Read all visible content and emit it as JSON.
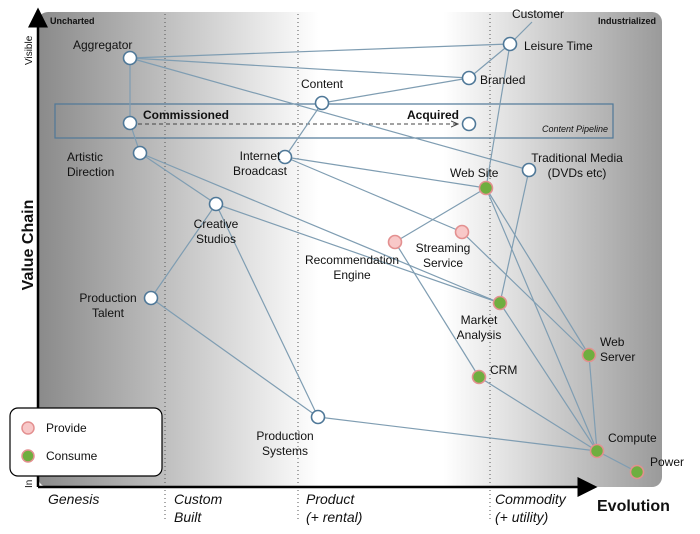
{
  "map": {
    "corner_labels": {
      "left": "Uncharted",
      "right": "Industrialized"
    },
    "y_axis": {
      "title": "Value Chain",
      "top": "Visible",
      "bottom": "In"
    },
    "x_axis": {
      "title": "Evolution"
    },
    "stages": [
      [
        "Genesis"
      ],
      [
        "Custom",
        "Built"
      ],
      [
        "Product",
        "(+ rental)"
      ],
      [
        "Commodity",
        "(+ utility)"
      ]
    ],
    "pipeline_label": "Content Pipeline",
    "legend": {
      "provide": "Provide",
      "consume": "Consume"
    },
    "nodes": [
      {
        "label": [
          "Customer"
        ]
      },
      {
        "label": [
          "Leisure Time"
        ]
      },
      {
        "label": [
          "Aggregator"
        ]
      },
      {
        "label": [
          "Branded"
        ]
      },
      {
        "label": [
          "Content"
        ]
      },
      {
        "label": [
          "Commissioned"
        ]
      },
      {
        "label": [
          "Acquired"
        ]
      },
      {
        "label": [
          "Artistic",
          "Direction"
        ]
      },
      {
        "label": [
          "Internet",
          "Broadcast"
        ]
      },
      {
        "label": [
          "Traditional Media",
          "(DVDs etc)"
        ]
      },
      {
        "label": [
          "Web Site"
        ]
      },
      {
        "label": [
          "Creative",
          "Studios"
        ]
      },
      {
        "label": [
          "Streaming",
          "Service"
        ]
      },
      {
        "label": [
          "Recommendation",
          "Engine"
        ]
      },
      {
        "label": [
          "Production",
          "Talent"
        ]
      },
      {
        "label": [
          "Market",
          "Analysis"
        ]
      },
      {
        "label": [
          "Web",
          "Server"
        ]
      },
      {
        "label": [
          "CRM"
        ]
      },
      {
        "label": [
          "Production",
          "Systems"
        ]
      },
      {
        "label": [
          "Compute"
        ]
      },
      {
        "label": [
          "Power"
        ]
      }
    ]
  }
}
